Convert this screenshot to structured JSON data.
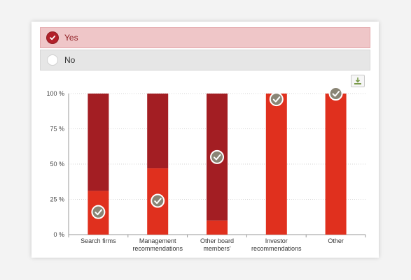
{
  "options": [
    {
      "label": "Yes",
      "selected": true
    },
    {
      "label": "No",
      "selected": false
    }
  ],
  "icons": {
    "download": "download-icon",
    "check": "check-icon"
  },
  "colors": {
    "series_dark": "#a31e23",
    "series_light": "#e0301e",
    "marker": "#8a8575",
    "selected_bg": "#efc6c8"
  },
  "chart_data": {
    "type": "bar",
    "stacked": true,
    "categories": [
      "Search firms",
      "Management recommendations",
      "Other board members'",
      "Investor recommendations",
      "Other"
    ],
    "series": [
      {
        "color": "#e0301e",
        "values": [
          31,
          47,
          10,
          100,
          100
        ]
      },
      {
        "color": "#a31e23",
        "values": [
          69,
          53,
          90,
          0,
          0
        ]
      }
    ],
    "markers": [
      16,
      24,
      55,
      96,
      100
    ],
    "yticks": [
      "0 %",
      "25 %",
      "50 %",
      "75 %",
      "100 %"
    ],
    "ylim": [
      0,
      100
    ],
    "grid": true
  }
}
